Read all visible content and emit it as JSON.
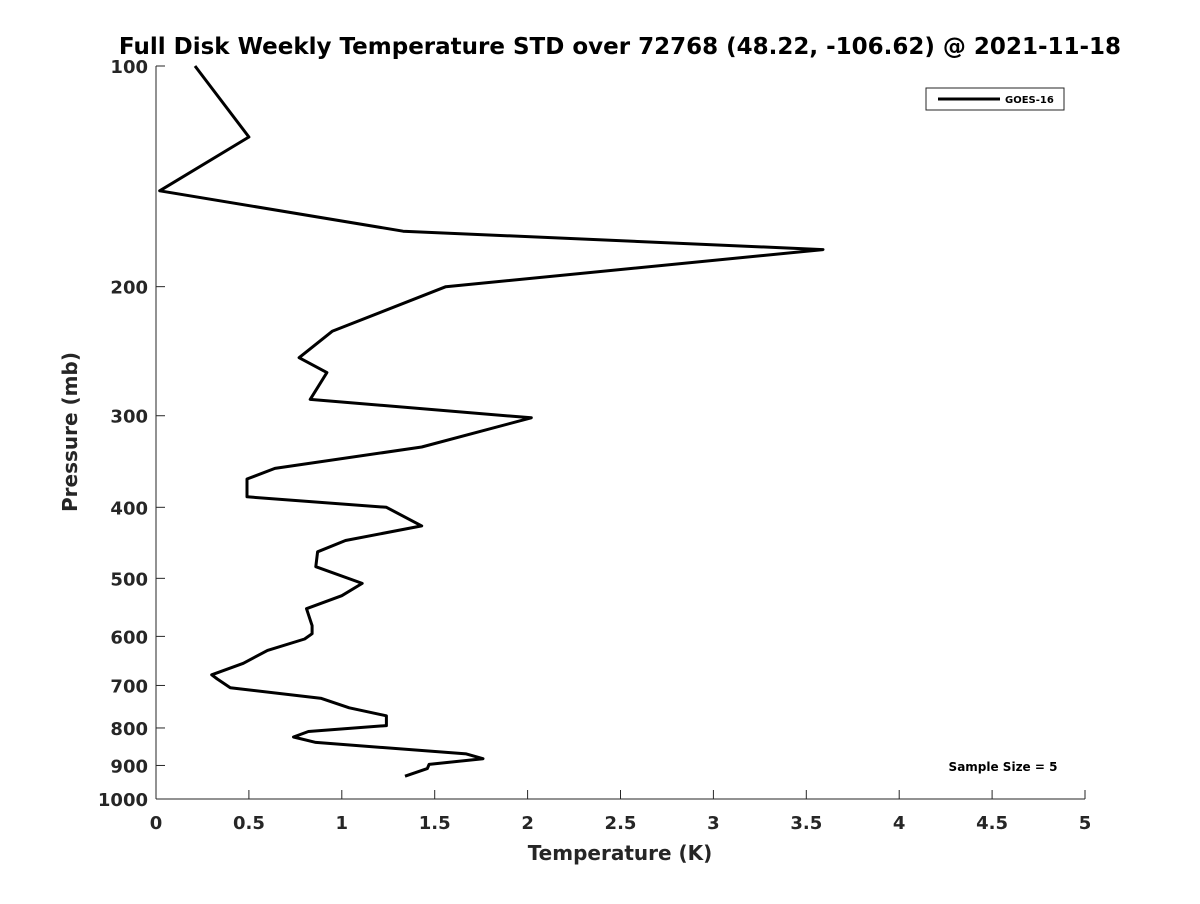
{
  "chart_data": {
    "type": "line",
    "title": "Full Disk Weekly Temperature STD over 72768 (48.22, -106.62) @ 2021-11-18",
    "xlabel": "Temperature (K)",
    "ylabel": "Pressure (mb)",
    "xlim": [
      0,
      5
    ],
    "ylim": [
      100,
      1000
    ],
    "y_scale": "log",
    "y_reversed": true,
    "x_ticks": [
      "0",
      "0.5",
      "1",
      "1.5",
      "2",
      "2.5",
      "3",
      "3.5",
      "4",
      "4.5",
      "5"
    ],
    "y_ticks": [
      "100",
      "200",
      "300",
      "400",
      "500",
      "600",
      "700",
      "800",
      "900",
      "1000"
    ],
    "grid": false,
    "legend": {
      "position": "top-right",
      "entries": [
        "GOES-16"
      ]
    },
    "annotation": "Sample Size = 5",
    "series": [
      {
        "name": "GOES-16",
        "color": "#000000",
        "x": [
          0.21,
          0.5,
          0.02,
          1.33,
          3.59,
          1.56,
          0.95,
          0.77,
          0.92,
          0.83,
          2.02,
          1.43,
          0.64,
          0.49,
          0.49,
          1.24,
          1.43,
          1.02,
          0.87,
          0.86,
          1.11,
          1.0,
          0.81,
          0.84,
          0.84,
          0.8,
          0.6,
          0.47,
          0.3,
          0.33,
          0.4,
          0.89,
          1.04,
          1.24,
          1.24,
          0.82,
          0.74,
          0.86,
          1.67,
          1.76,
          1.47,
          1.46,
          1.34
        ],
        "y": [
          100,
          125,
          148,
          168,
          178,
          200,
          230,
          250,
          262,
          285,
          302,
          331,
          354,
          366,
          387,
          400,
          424,
          444,
          460,
          482,
          508,
          528,
          550,
          580,
          595,
          605,
          627,
          653,
          677,
          686,
          705,
          729,
          751,
          770,
          794,
          809,
          823,
          837,
          868,
          881,
          897,
          909,
          931
        ]
      }
    ]
  }
}
